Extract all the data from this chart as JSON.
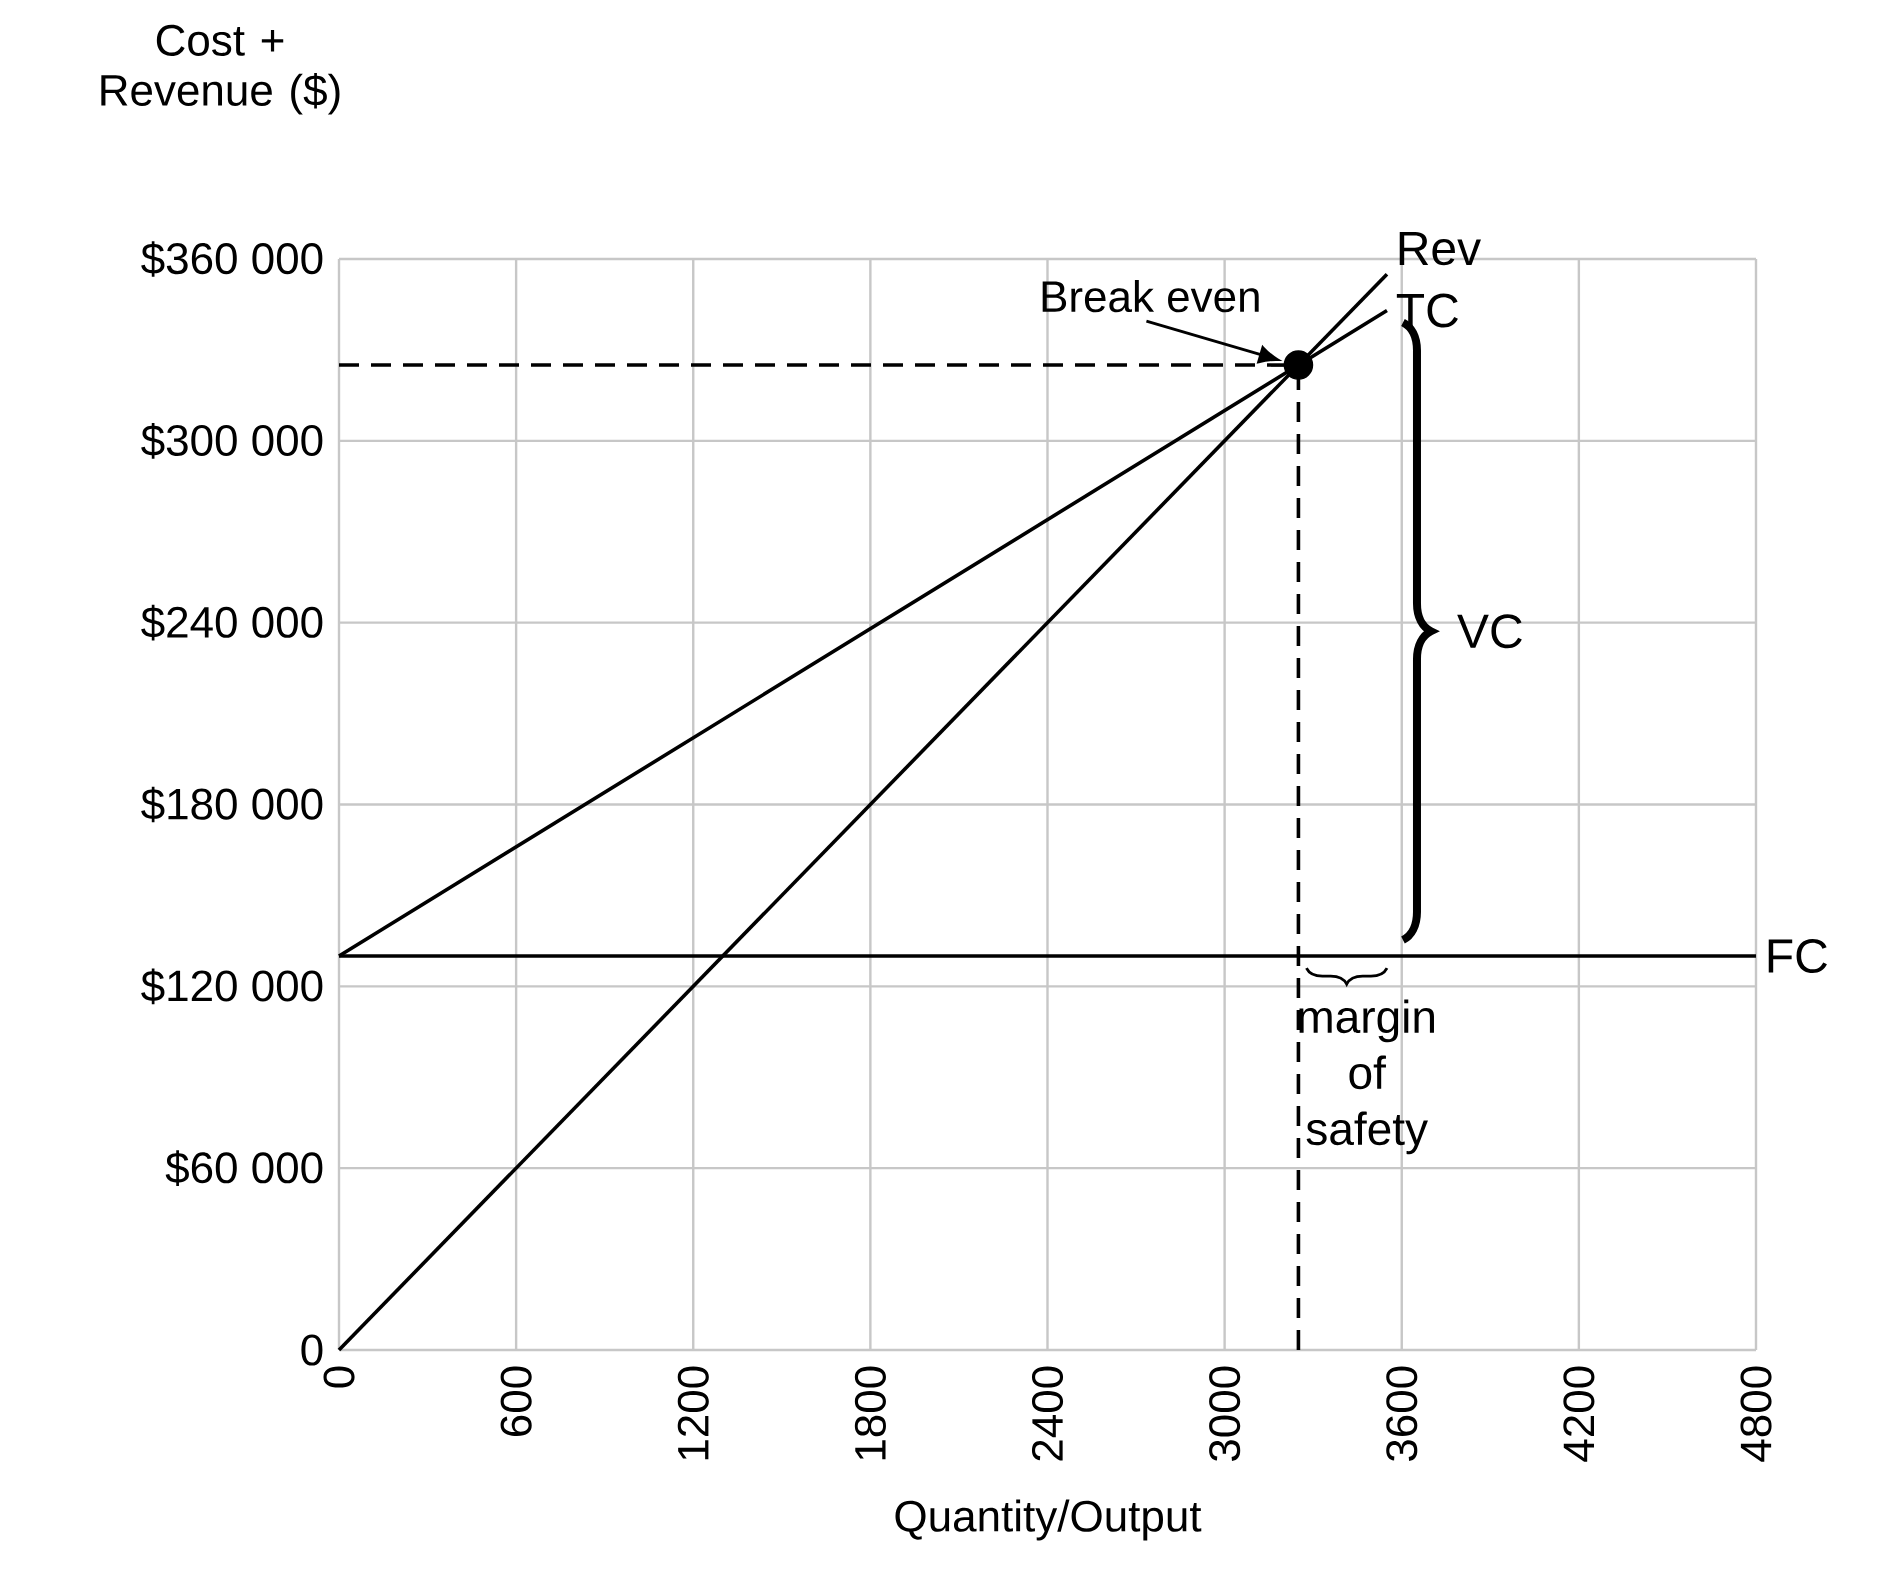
{
  "chart_data": {
    "type": "line",
    "xlabel": "Quantity/Output",
    "ylabel": "Cost + Revenue ($)",
    "xlim": [
      0,
      4800
    ],
    "ylim": [
      0,
      360000
    ],
    "xticks": [
      0,
      600,
      1200,
      1800,
      2400,
      3000,
      3600,
      4200,
      4800
    ],
    "yticks": [
      0,
      {
        "value": 60000,
        "label": "$60 000"
      },
      {
        "value": 120000,
        "label": "$120 000"
      },
      {
        "value": 180000,
        "label": "$180 000"
      },
      {
        "value": 240000,
        "label": "$240 000"
      },
      {
        "value": 300000,
        "label": "$300 000"
      },
      {
        "value": 360000,
        "label": "$360 000"
      }
    ],
    "grid": true,
    "line_style": "solid",
    "marker": "none",
    "series": [
      {
        "name": "Rev",
        "color": "#000000",
        "x": [
          0,
          3550
        ],
        "values": [
          0,
          355000
        ]
      },
      {
        "name": "TC",
        "color": "#000000",
        "x": [
          0,
          3550
        ],
        "values": [
          130000,
          343000
        ]
      },
      {
        "name": "FC",
        "color": "#000000",
        "x": [
          0,
          4800
        ],
        "values": [
          130000,
          130000
        ]
      },
      {
        "color": "#000000",
        "x": [
          0,
          3250
        ],
        "values": [
          325000,
          325000
        ],
        "line_style": "dashed"
      },
      {
        "color": "#000000",
        "x": [
          3250,
          3250
        ],
        "values": [
          0,
          325000
        ],
        "line_style": "dashed"
      },
      {
        "type": "scatter",
        "color": "#000000",
        "x": [
          3250
        ],
        "values": [
          325000
        ],
        "marker": "circle"
      }
    ],
    "annotations": [
      {
        "text": "Break even",
        "x": 3250,
        "y": 325000
      },
      "VC",
      "margin of safety"
    ]
  }
}
